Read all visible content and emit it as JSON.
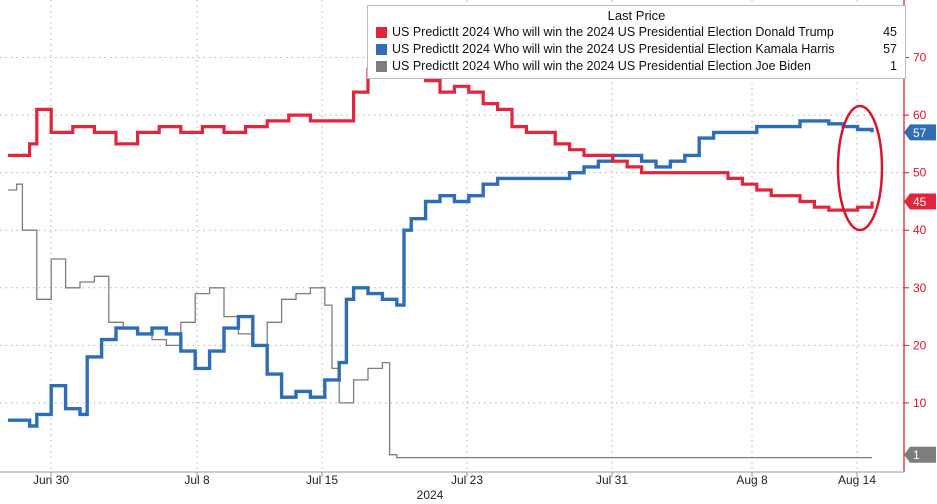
{
  "chart_data": {
    "type": "line",
    "title": "",
    "x_tick_labels": [
      "Jun 30",
      "Jul 8",
      "Jul 15",
      "Jul 23",
      "Jul 31",
      "Aug 8",
      "Aug 14"
    ],
    "x_year_label": "2024",
    "y_tick_labels": [
      "10",
      "20",
      "30",
      "40",
      "50",
      "60",
      "70"
    ],
    "ylim": [
      -2,
      80
    ],
    "y_axis_side": "right",
    "grid": true,
    "legend": {
      "header": "Last Price",
      "position": "top-right",
      "entries": [
        {
          "label": "US PredictIt 2024 Who will win the 2024 US Presidential Election Donald Trump",
          "value": "45"
        },
        {
          "label": "US PredictIt 2024 Who will win the 2024 US Presidential Election Kamala Harris",
          "value": "57"
        },
        {
          "label": "US PredictIt 2024 Who will win the 2024 US Presidential Election Joe Biden",
          "value": "1"
        }
      ]
    },
    "last_value_badges": [
      "57",
      "45",
      "1"
    ],
    "annotation": "red ellipse highlighting latest values",
    "series": [
      {
        "color": "#e0253c",
        "points": [
          [
            0,
            53
          ],
          [
            1.5,
            55
          ],
          [
            2,
            61
          ],
          [
            3,
            57
          ],
          [
            4.5,
            58
          ],
          [
            6,
            57
          ],
          [
            7.5,
            55
          ],
          [
            9,
            57
          ],
          [
            10.5,
            58
          ],
          [
            12,
            57
          ],
          [
            13.5,
            58
          ],
          [
            15,
            57
          ],
          [
            16.5,
            58
          ],
          [
            18,
            59
          ],
          [
            19.5,
            60
          ],
          [
            21,
            59
          ],
          [
            22.5,
            59
          ],
          [
            23.5,
            59
          ],
          [
            24,
            64
          ],
          [
            25,
            68
          ],
          [
            26,
            69
          ],
          [
            27,
            70
          ],
          [
            28,
            68
          ],
          [
            29,
            66
          ],
          [
            30,
            64
          ],
          [
            31,
            65
          ],
          [
            32,
            64
          ],
          [
            33,
            62
          ],
          [
            34,
            61
          ],
          [
            35,
            58
          ],
          [
            36,
            57
          ],
          [
            37,
            57
          ],
          [
            38,
            55
          ],
          [
            39,
            54
          ],
          [
            40,
            53
          ],
          [
            41,
            53
          ],
          [
            42,
            52
          ],
          [
            43,
            51
          ],
          [
            44,
            50
          ],
          [
            45,
            50
          ],
          [
            46,
            50
          ],
          [
            47,
            50
          ],
          [
            48,
            50
          ],
          [
            49,
            50
          ],
          [
            50,
            49
          ],
          [
            51,
            48
          ],
          [
            52,
            47
          ],
          [
            53,
            46
          ],
          [
            54,
            46
          ],
          [
            55,
            45
          ],
          [
            56,
            44
          ],
          [
            57,
            43.5
          ],
          [
            58,
            43.5
          ],
          [
            59,
            44
          ],
          [
            60,
            45
          ]
        ]
      },
      {
        "color": "#2f6db5",
        "points": [
          [
            0,
            7
          ],
          [
            1.5,
            6
          ],
          [
            2,
            8
          ],
          [
            3,
            13
          ],
          [
            4,
            9
          ],
          [
            5,
            8
          ],
          [
            5.5,
            18
          ],
          [
            6.5,
            21
          ],
          [
            7.5,
            23
          ],
          [
            9,
            22
          ],
          [
            10,
            23
          ],
          [
            11,
            22
          ],
          [
            12,
            19
          ],
          [
            13,
            16
          ],
          [
            14,
            19
          ],
          [
            15,
            23
          ],
          [
            16,
            25
          ],
          [
            17,
            20
          ],
          [
            18,
            15
          ],
          [
            19,
            11
          ],
          [
            20,
            12
          ],
          [
            21,
            11
          ],
          [
            22,
            14
          ],
          [
            23,
            17
          ],
          [
            23.5,
            28
          ],
          [
            24,
            30
          ],
          [
            25,
            29
          ],
          [
            26,
            28
          ],
          [
            27,
            27
          ],
          [
            27.5,
            40
          ],
          [
            28,
            42
          ],
          [
            29,
            45
          ],
          [
            30,
            46
          ],
          [
            31,
            45
          ],
          [
            32,
            46
          ],
          [
            33,
            48
          ],
          [
            34,
            49
          ],
          [
            35,
            49
          ],
          [
            36,
            49
          ],
          [
            37,
            49
          ],
          [
            38,
            49
          ],
          [
            39,
            50
          ],
          [
            40,
            51
          ],
          [
            41,
            52
          ],
          [
            42,
            53
          ],
          [
            43,
            53
          ],
          [
            44,
            52
          ],
          [
            45,
            51
          ],
          [
            46,
            52
          ],
          [
            47,
            53
          ],
          [
            48,
            56
          ],
          [
            49,
            57
          ],
          [
            50,
            57
          ],
          [
            51,
            57
          ],
          [
            52,
            58
          ],
          [
            53,
            58
          ],
          [
            54,
            58
          ],
          [
            55,
            59
          ],
          [
            56,
            59
          ],
          [
            57,
            58.5
          ],
          [
            58,
            58
          ],
          [
            59,
            57.5
          ],
          [
            60,
            57
          ]
        ]
      },
      {
        "color": "#7d7d7d",
        "points": [
          [
            0,
            47
          ],
          [
            0.6,
            48
          ],
          [
            1,
            40
          ],
          [
            2,
            28
          ],
          [
            3,
            35
          ],
          [
            4,
            30
          ],
          [
            5,
            31
          ],
          [
            6,
            32
          ],
          [
            7,
            24
          ],
          [
            8,
            23
          ],
          [
            9,
            22
          ],
          [
            10,
            21
          ],
          [
            11,
            20
          ],
          [
            12,
            24
          ],
          [
            13,
            29
          ],
          [
            14,
            30
          ],
          [
            15,
            25
          ],
          [
            16,
            22
          ],
          [
            17,
            20
          ],
          [
            18,
            24
          ],
          [
            19,
            28
          ],
          [
            20,
            29
          ],
          [
            21,
            30
          ],
          [
            22,
            27
          ],
          [
            22.5,
            16
          ],
          [
            23,
            10
          ],
          [
            24,
            14
          ],
          [
            25,
            16
          ],
          [
            26,
            17
          ],
          [
            26.5,
            1
          ],
          [
            27,
            0.5
          ],
          [
            60,
            0.5
          ]
        ]
      }
    ]
  }
}
